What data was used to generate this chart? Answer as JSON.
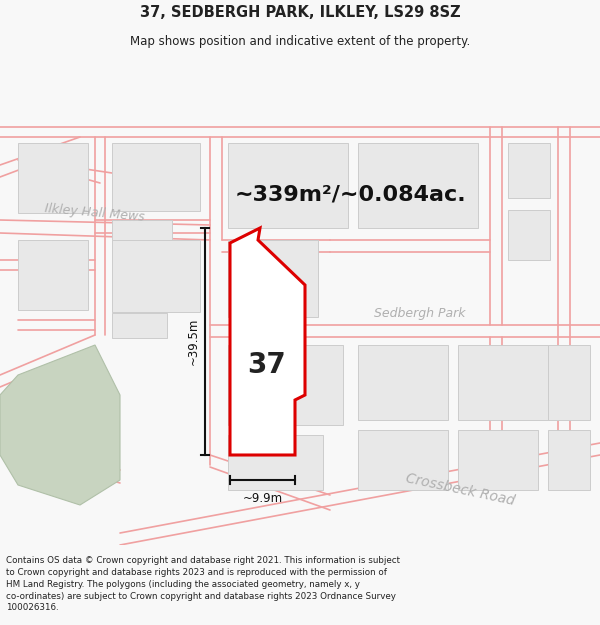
{
  "title": "37, SEDBERGH PARK, ILKLEY, LS29 8SZ",
  "subtitle": "Map shows position and indicative extent of the property.",
  "area_text": "~339m²/~0.084ac.",
  "number_label": "37",
  "dim_vertical": "~39.5m",
  "dim_horizontal": "~9.9m",
  "street_label_1": "Ilkley Hall Mews",
  "street_label_2": "Sedbergh Park",
  "street_label_3": "Crossbeck Road",
  "footer_lines": [
    "Contains OS data © Crown copyright and database right 2021. This information is subject to Crown copyright and database rights 2023 and is reproduced with the permission of",
    "HM Land Registry. The polygons (including the associated geometry, namely x, y co-ordinates) are subject to Crown copyright and database rights 2023 Ordnance Survey",
    "100026316."
  ],
  "map_bg": "#ffffff",
  "highlight_color": "#dd0000",
  "road_color": "#f0a0a0",
  "block_fill": "#e8e8e8",
  "block_edge": "#cccccc",
  "green_fill": "#c8d4c0",
  "green_edge": "#b0c0a8",
  "text_gray": "#b0b0b0",
  "dim_color": "#111111"
}
